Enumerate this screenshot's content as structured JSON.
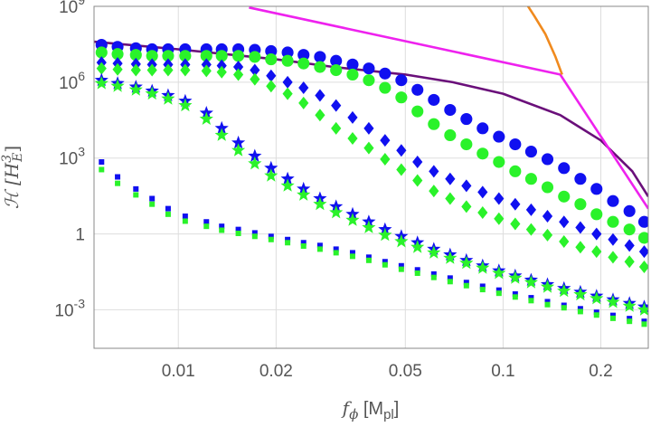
{
  "chart_data": {
    "type": "scatter",
    "title": "",
    "xlabel": "fϕ [Mpl]",
    "ylabel": "ℋ [HE3]",
    "xscale": "log",
    "yscale": "log",
    "xlim": [
      0.0055,
      0.28
    ],
    "ylim": [
      3e-05,
      1000000000
    ],
    "grid": true,
    "x_ticks": [
      {
        "value": 0.01,
        "label": "0.01"
      },
      {
        "value": 0.02,
        "label": "0.02"
      },
      {
        "value": 0.05,
        "label": "0.05"
      },
      {
        "value": 0.1,
        "label": "0.1"
      },
      {
        "value": 0.2,
        "label": "0.2"
      }
    ],
    "y_ticks": [
      {
        "value": 0.001,
        "label": "10",
        "sup": "-3"
      },
      {
        "value": 1,
        "label": "1",
        "sup": ""
      },
      {
        "value": 1000,
        "label": "10",
        "sup": "3"
      },
      {
        "value": 1000000,
        "label": "10",
        "sup": "6"
      },
      {
        "value": 1000000000,
        "label": "10",
        "sup": "9"
      }
    ],
    "curves": [
      {
        "name": "purple curve",
        "color": "#6a0f7a",
        "x": [
          0.0055,
          0.01,
          0.02,
          0.03,
          0.05,
          0.07,
          0.1,
          0.15,
          0.2,
          0.25,
          0.28
        ],
        "y": [
          40000000,
          20000000,
          8000000,
          4000000,
          2000000,
          1000000,
          350000,
          50000,
          5000,
          300,
          30
        ]
      },
      {
        "name": "magenta line",
        "color": "#ee22ee",
        "x": [
          0.0165,
          0.15,
          0.28
        ],
        "y": [
          900000000,
          2000000,
          10
        ]
      },
      {
        "name": "orange curve",
        "color": "#f08a1e",
        "x": [
          0.117,
          0.125,
          0.135,
          0.145,
          0.152
        ],
        "y": [
          1500000000,
          400000000,
          80000000,
          10000000,
          2000000
        ]
      }
    ],
    "series": [
      {
        "name": "blue circles",
        "marker": "circle",
        "color": "#1010f0",
        "size": 8,
        "x": [
          0.0058,
          0.0065,
          0.0074,
          0.0083,
          0.0093,
          0.0105,
          0.0122,
          0.0136,
          0.0153,
          0.0172,
          0.0193,
          0.0217,
          0.0243,
          0.0273,
          0.0306,
          0.0344,
          0.0386,
          0.0433,
          0.0486,
          0.0545,
          0.0612,
          0.0687,
          0.0771,
          0.0865,
          0.0971,
          0.109,
          0.122,
          0.137,
          0.154,
          0.173,
          0.194,
          0.218,
          0.245,
          0.272
        ],
        "y": [
          30000000,
          25000000,
          22000000,
          20000000,
          20000000,
          20000000,
          20000000,
          20000000,
          20000000,
          19000000,
          17000000,
          15000000,
          12000000,
          10000000,
          7000000,
          5000000,
          3500000,
          2200000,
          1200000,
          500000,
          200000,
          80000,
          35000,
          15000,
          7000,
          3500,
          1800,
          900,
          400,
          150,
          60,
          20,
          8,
          3
        ]
      },
      {
        "name": "green circles",
        "marker": "circle",
        "color": "#2af22a",
        "size": 8,
        "x": [
          0.0058,
          0.0065,
          0.0074,
          0.0083,
          0.0093,
          0.0105,
          0.0122,
          0.0136,
          0.0153,
          0.0172,
          0.0193,
          0.0217,
          0.0243,
          0.0273,
          0.0306,
          0.0344,
          0.0386,
          0.0433,
          0.0486,
          0.0545,
          0.0612,
          0.0687,
          0.0771,
          0.0865,
          0.0971,
          0.109,
          0.122,
          0.137,
          0.154,
          0.173,
          0.194,
          0.218,
          0.245,
          0.272
        ],
        "y": [
          15000000,
          13000000,
          12000000,
          11000000,
          11000000,
          11000000,
          11000000,
          11000000,
          11000000,
          10000000,
          8000000,
          7000000,
          5500000,
          4000000,
          3000000,
          2000000,
          1200000,
          600000,
          250000,
          70000,
          22000,
          8000,
          3500,
          1500,
          700,
          300,
          150,
          70,
          30,
          15,
          6,
          3,
          1.5,
          0.7
        ]
      },
      {
        "name": "blue diamonds",
        "marker": "diamond",
        "color": "#1010f0",
        "size": 7,
        "x": [
          0.0058,
          0.0065,
          0.0074,
          0.0083,
          0.0093,
          0.0105,
          0.0122,
          0.0136,
          0.0153,
          0.0172,
          0.0193,
          0.0217,
          0.0243,
          0.0273,
          0.0306,
          0.0344,
          0.0386,
          0.0433,
          0.0486,
          0.0545,
          0.0612,
          0.0687,
          0.0771,
          0.0865,
          0.0971,
          0.109,
          0.122,
          0.137,
          0.154,
          0.173,
          0.194,
          0.218,
          0.245,
          0.272
        ],
        "y": [
          6000000,
          5500000,
          5200000,
          5000000,
          5000000,
          5000000,
          5000000,
          4500000,
          4000000,
          3000000,
          1800000,
          1000000,
          600000,
          300000,
          120000,
          40000,
          15000,
          5000,
          2000,
          700,
          300,
          150,
          80,
          45,
          25,
          15,
          9,
          5,
          3,
          1.8,
          1,
          0.6,
          0.35,
          0.2
        ]
      },
      {
        "name": "green diamonds",
        "marker": "diamond",
        "color": "#2af22a",
        "size": 7,
        "x": [
          0.0058,
          0.0065,
          0.0074,
          0.0083,
          0.0093,
          0.0105,
          0.0122,
          0.0136,
          0.0153,
          0.0172,
          0.0193,
          0.0217,
          0.0243,
          0.0273,
          0.0306,
          0.0344,
          0.0386,
          0.0433,
          0.0486,
          0.0545,
          0.0612,
          0.0687,
          0.0771,
          0.0865,
          0.0971,
          0.109,
          0.122,
          0.137,
          0.154,
          0.173,
          0.194,
          0.218,
          0.245,
          0.272
        ],
        "y": [
          3500000,
          3200000,
          3000000,
          3000000,
          3000000,
          3000000,
          2800000,
          2500000,
          2000000,
          1300000,
          700000,
          350000,
          150000,
          50000,
          15000,
          6000,
          2500,
          900,
          350,
          130,
          50,
          25,
          12,
          7,
          4,
          2.5,
          1.5,
          0.9,
          0.5,
          0.3,
          0.2,
          0.12,
          0.08,
          0.05
        ]
      },
      {
        "name": "blue stars",
        "marker": "star",
        "color": "#1010f0",
        "size": 8,
        "x": [
          0.0058,
          0.0065,
          0.0074,
          0.0083,
          0.0093,
          0.0105,
          0.0122,
          0.0136,
          0.0153,
          0.0172,
          0.0193,
          0.0217,
          0.0243,
          0.0273,
          0.0306,
          0.0344,
          0.0386,
          0.0433,
          0.0486,
          0.0545,
          0.0612,
          0.0687,
          0.0771,
          0.0865,
          0.0971,
          0.109,
          0.122,
          0.137,
          0.154,
          0.173,
          0.194,
          0.218,
          0.245,
          0.272
        ],
        "y": [
          1200000,
          900000,
          650000,
          450000,
          300000,
          180000,
          60000,
          15000,
          4000,
          1200,
          400,
          150,
          60,
          25,
          12,
          6,
          3,
          1.5,
          0.8,
          0.45,
          0.25,
          0.15,
          0.09,
          0.055,
          0.035,
          0.022,
          0.015,
          0.01,
          0.007,
          0.005,
          0.0035,
          0.0025,
          0.0018,
          0.0013
        ]
      },
      {
        "name": "green stars",
        "marker": "star",
        "color": "#2af22a",
        "size": 8,
        "x": [
          0.0058,
          0.0065,
          0.0074,
          0.0083,
          0.0093,
          0.0105,
          0.0122,
          0.0136,
          0.0153,
          0.0172,
          0.0193,
          0.0217,
          0.0243,
          0.0273,
          0.0306,
          0.0344,
          0.0386,
          0.0433,
          0.0486,
          0.0545,
          0.0612,
          0.0687,
          0.0771,
          0.0865,
          0.0971,
          0.109,
          0.122,
          0.137,
          0.154,
          0.173,
          0.194,
          0.218,
          0.245,
          0.272
        ],
        "y": [
          900000,
          700000,
          500000,
          350000,
          220000,
          120000,
          35000,
          8000,
          2000,
          600,
          200,
          80,
          35,
          15,
          7,
          3.5,
          1.8,
          0.9,
          0.5,
          0.3,
          0.18,
          0.11,
          0.07,
          0.045,
          0.028,
          0.018,
          0.012,
          0.008,
          0.0055,
          0.004,
          0.0028,
          0.002,
          0.0014,
          0.001
        ]
      },
      {
        "name": "blue squares",
        "marker": "square",
        "color": "#1010f0",
        "size": 6,
        "x": [
          0.0058,
          0.0065,
          0.0074,
          0.0083,
          0.0093,
          0.0105,
          0.0122,
          0.0136,
          0.0153,
          0.0172,
          0.0193,
          0.0217,
          0.0243,
          0.0273,
          0.0306,
          0.0344,
          0.0386,
          0.0433,
          0.0486,
          0.0545,
          0.0612,
          0.0687,
          0.0771,
          0.0865,
          0.0971,
          0.109,
          0.122,
          0.137,
          0.154,
          0.173,
          0.194,
          0.218,
          0.245,
          0.272
        ],
        "y": [
          700,
          180,
          60,
          25,
          10,
          5,
          3,
          2,
          1.5,
          1.1,
          0.8,
          0.6,
          0.45,
          0.35,
          0.25,
          0.18,
          0.12,
          0.08,
          0.055,
          0.038,
          0.026,
          0.018,
          0.012,
          0.0085,
          0.006,
          0.0042,
          0.003,
          0.0021,
          0.0015,
          0.0011,
          0.0008,
          0.0006,
          0.00045,
          0.00035
        ]
      },
      {
        "name": "green squares",
        "marker": "square",
        "color": "#2af22a",
        "size": 6,
        "x": [
          0.0058,
          0.0065,
          0.0074,
          0.0083,
          0.0093,
          0.0105,
          0.0122,
          0.0136,
          0.0153,
          0.0172,
          0.0193,
          0.0217,
          0.0243,
          0.0273,
          0.0306,
          0.0344,
          0.0386,
          0.0433,
          0.0486,
          0.0545,
          0.0612,
          0.0687,
          0.0771,
          0.0865,
          0.0971,
          0.109,
          0.122,
          0.137,
          0.154,
          0.173,
          0.194,
          0.218,
          0.245,
          0.272
        ],
        "y": [
          350,
          100,
          35,
          15,
          6,
          3.2,
          2,
          1.4,
          1.05,
          0.8,
          0.6,
          0.45,
          0.33,
          0.25,
          0.18,
          0.13,
          0.09,
          0.06,
          0.04,
          0.028,
          0.019,
          0.013,
          0.009,
          0.0063,
          0.0045,
          0.0032,
          0.0023,
          0.0016,
          0.0012,
          0.00085,
          0.00062,
          0.00046,
          0.00035,
          0.00027
        ]
      }
    ]
  }
}
